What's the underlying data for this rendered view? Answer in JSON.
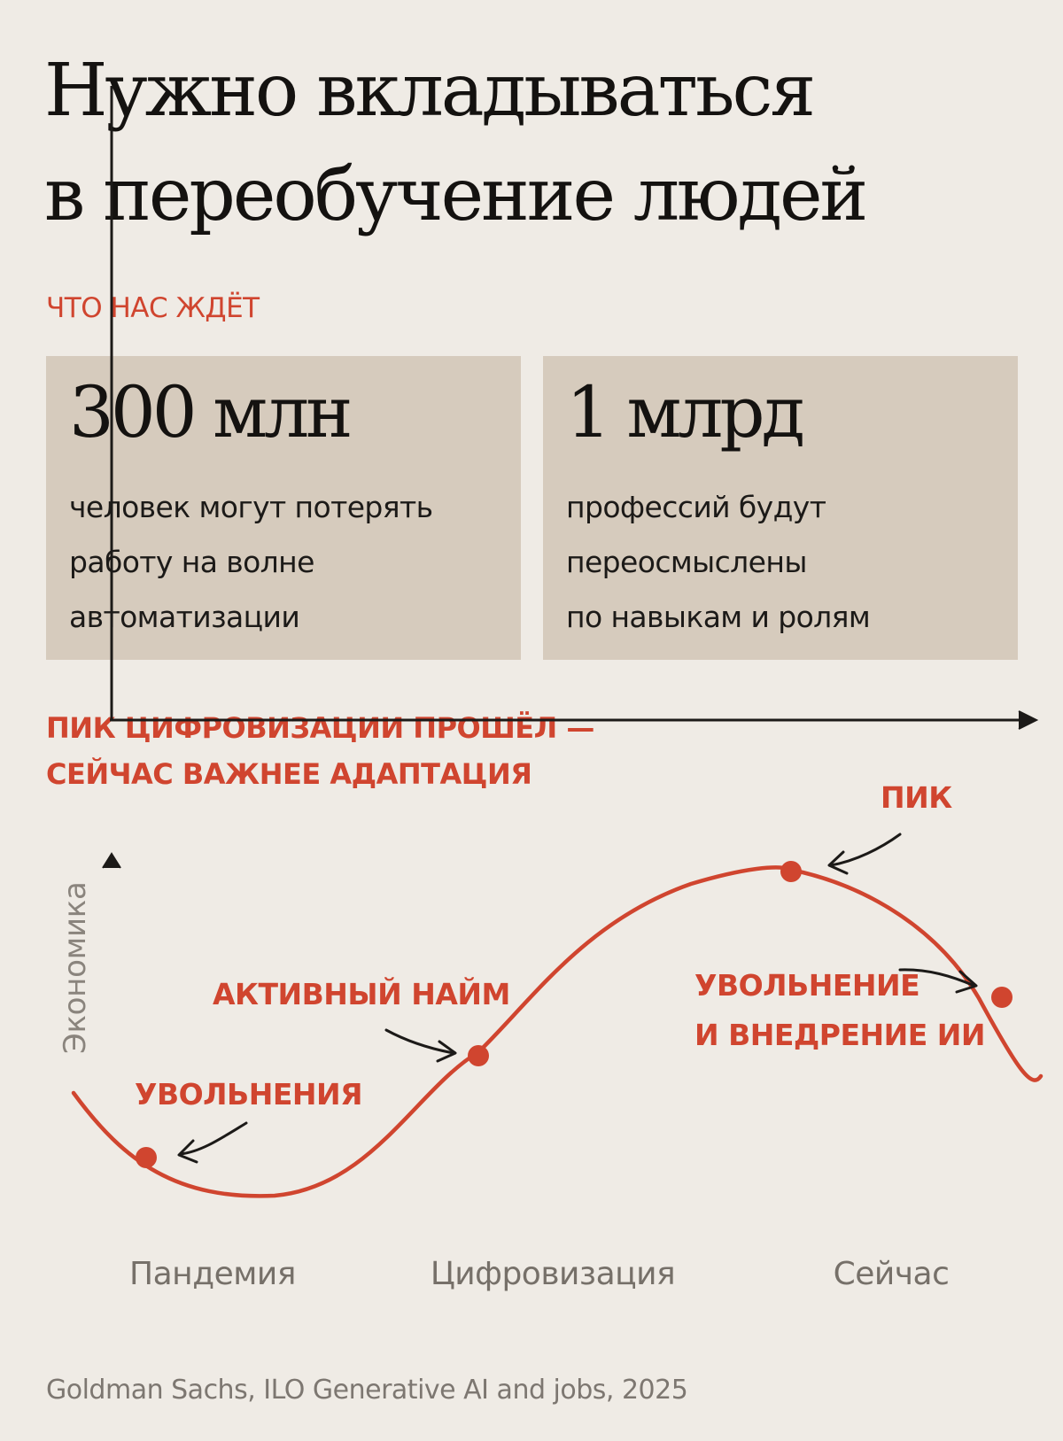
{
  "title": {
    "line1": "Нужно вкладываться",
    "line2": "в переобучение людей"
  },
  "section1": {
    "label": "ЧТО НАС ЖДЁТ",
    "cards": [
      {
        "number": "300 млн",
        "lines": [
          "человек могут потерять",
          "работу на волне",
          "автоматизации"
        ]
      },
      {
        "number": "1 млрд",
        "lines": [
          "профессий будут",
          "переосмыслены",
          "по навыкам и ролям"
        ]
      }
    ]
  },
  "section2": {
    "label_line1": "ПИК ЦИФРОВИЗАЦИИ ПРОШЁЛ —",
    "label_line2": "СЕЙЧАС ВАЖНЕЕ АДАПТАЦИЯ"
  },
  "chart_data": {
    "type": "line",
    "ylabel": "Экономика",
    "xlabel": "",
    "x_ticks": [
      "Пандемия",
      "Цифровизация",
      "Сейчас"
    ],
    "annotations": [
      {
        "id": "layoffs",
        "lines": [
          "УВОЛЬНЕНИЯ"
        ]
      },
      {
        "id": "hiring",
        "lines": [
          "АКТИВНЫЙ НАЙМ"
        ]
      },
      {
        "id": "peak",
        "lines": [
          "ПИК"
        ]
      },
      {
        "id": "ai",
        "lines": [
          "УВОЛЬНЕНИЕ",
          "И ВНЕДРЕНИЕ ИИ"
        ]
      }
    ],
    "grid": false,
    "colors": {
      "curve": "#d0452f",
      "axis": "#1c1a18",
      "label": "#d0452f"
    }
  },
  "source": "Goldman Sachs, ILO Generative AI and jobs, 2025"
}
